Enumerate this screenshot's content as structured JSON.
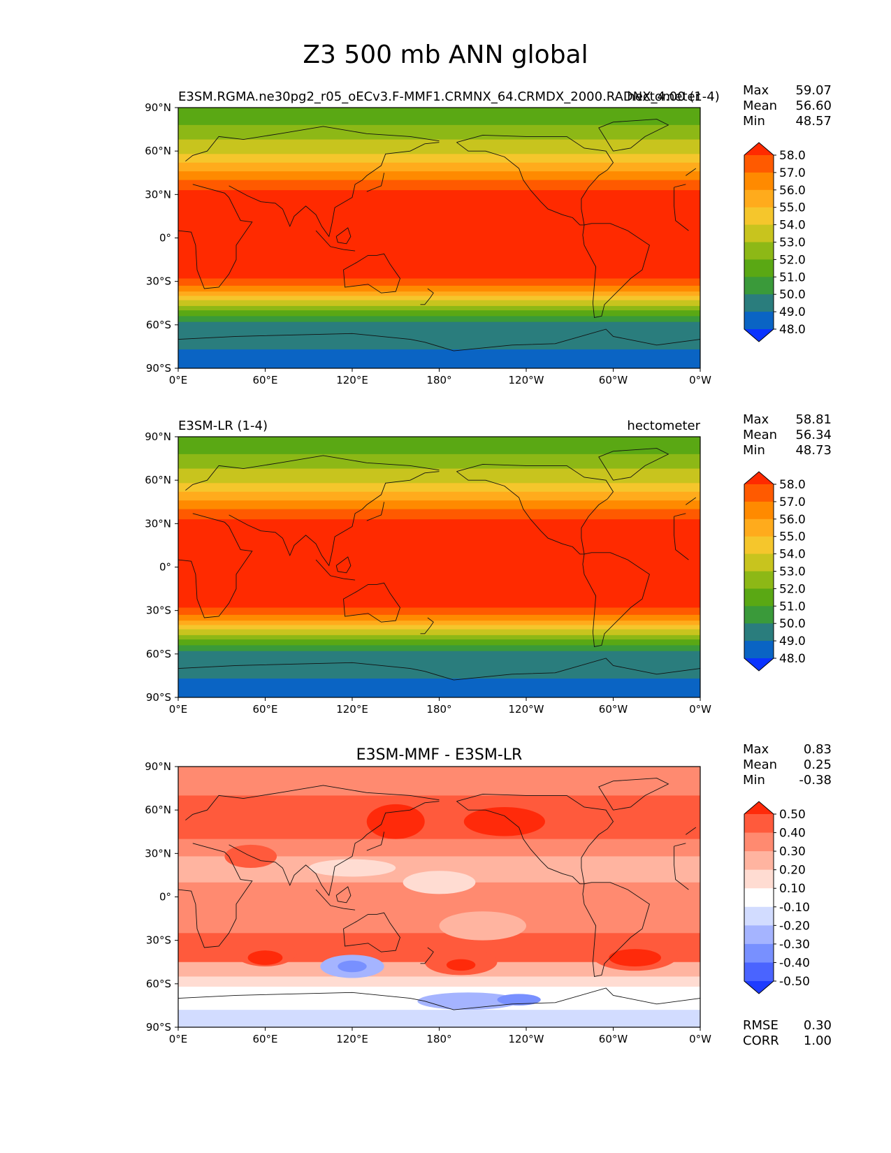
{
  "suptitle": "Z3 500 mb ANN global",
  "chart_data": [
    {
      "type": "heatmap",
      "panel": "test",
      "title_left": "E3SM.RGMA.ne30pg2_r05_oECv3.F-MMF1.CRMNX_64.CRMDX_2000.RADNX_4.00 (1-4)",
      "title_center": "",
      "title_right": "hectometer",
      "stats": [
        {
          "label": "Max",
          "value": "59.07"
        },
        {
          "label": "Mean",
          "value": "56.60"
        },
        {
          "label": "Min",
          "value": "48.57"
        }
      ],
      "footer_stats": [],
      "colorbar": {
        "levels": [
          "58.0",
          "57.0",
          "56.0",
          "55.0",
          "54.0",
          "53.0",
          "52.0",
          "51.0",
          "50.0",
          "49.0",
          "48.0"
        ],
        "colors": [
          "#ff2a00",
          "#ff5a00",
          "#ff8a00",
          "#ffab1c",
          "#f5c62c",
          "#c8c41e",
          "#8db816",
          "#5aa814",
          "#3a9a3a",
          "#2a7d7d",
          "#0a64c4",
          "#0a33ff"
        ],
        "extend": "both"
      },
      "xticks": [
        "0°E",
        "60°E",
        "120°E",
        "180°",
        "120°W",
        "60°W",
        "0°W"
      ],
      "yticks": [
        "90°N",
        "60°N",
        "30°N",
        "0°",
        "30°S",
        "60°S",
        "90°S"
      ],
      "xlim": [
        0,
        360
      ],
      "ylim": [
        -90,
        90
      ]
    },
    {
      "type": "heatmap",
      "panel": "reference",
      "title_left": "E3SM-LR (1-4)",
      "title_center": "",
      "title_right": "hectometer",
      "stats": [
        {
          "label": "Max",
          "value": "58.81"
        },
        {
          "label": "Mean",
          "value": "56.34"
        },
        {
          "label": "Min",
          "value": "48.73"
        }
      ],
      "footer_stats": [],
      "colorbar": {
        "levels": [
          "58.0",
          "57.0",
          "56.0",
          "55.0",
          "54.0",
          "53.0",
          "52.0",
          "51.0",
          "50.0",
          "49.0",
          "48.0"
        ],
        "colors": [
          "#ff2a00",
          "#ff5a00",
          "#ff8a00",
          "#ffab1c",
          "#f5c62c",
          "#c8c41e",
          "#8db816",
          "#5aa814",
          "#3a9a3a",
          "#2a7d7d",
          "#0a64c4",
          "#0a33ff"
        ],
        "extend": "both"
      },
      "xticks": [
        "0°E",
        "60°E",
        "120°E",
        "180°",
        "120°W",
        "60°W",
        "0°W"
      ],
      "yticks": [
        "90°N",
        "60°N",
        "30°N",
        "0°",
        "30°S",
        "60°S",
        "90°S"
      ],
      "xlim": [
        0,
        360
      ],
      "ylim": [
        -90,
        90
      ]
    },
    {
      "type": "heatmap",
      "panel": "difference",
      "title_left": "",
      "title_center": "E3SM-MMF - E3SM-LR",
      "title_right": "",
      "stats": [
        {
          "label": "Max",
          "value": "0.83"
        },
        {
          "label": "Mean",
          "value": "0.25"
        },
        {
          "label": "Min",
          "value": "-0.38"
        }
      ],
      "footer_stats": [
        {
          "label": "RMSE",
          "value": "0.30"
        },
        {
          "label": "CORR",
          "value": "1.00"
        }
      ],
      "colorbar": {
        "levels": [
          "0.50",
          "0.40",
          "0.30",
          "0.20",
          "0.10",
          "-0.10",
          "-0.20",
          "-0.30",
          "-0.40",
          "-0.50"
        ],
        "colors": [
          "#ff2a0a",
          "#ff5a3c",
          "#ff8a70",
          "#ffb4a0",
          "#ffdcd2",
          "#ffffff",
          "#d2dcff",
          "#a5b4ff",
          "#7890ff",
          "#4a64ff",
          "#1e3cff"
        ],
        "extend": "both"
      },
      "xticks": [
        "0°E",
        "60°E",
        "120°E",
        "180°",
        "120°W",
        "60°W",
        "0°W"
      ],
      "yticks": [
        "90°N",
        "60°N",
        "30°N",
        "0°",
        "30°S",
        "60°S",
        "90°S"
      ],
      "xlim": [
        0,
        360
      ],
      "ylim": [
        -90,
        90
      ]
    }
  ]
}
